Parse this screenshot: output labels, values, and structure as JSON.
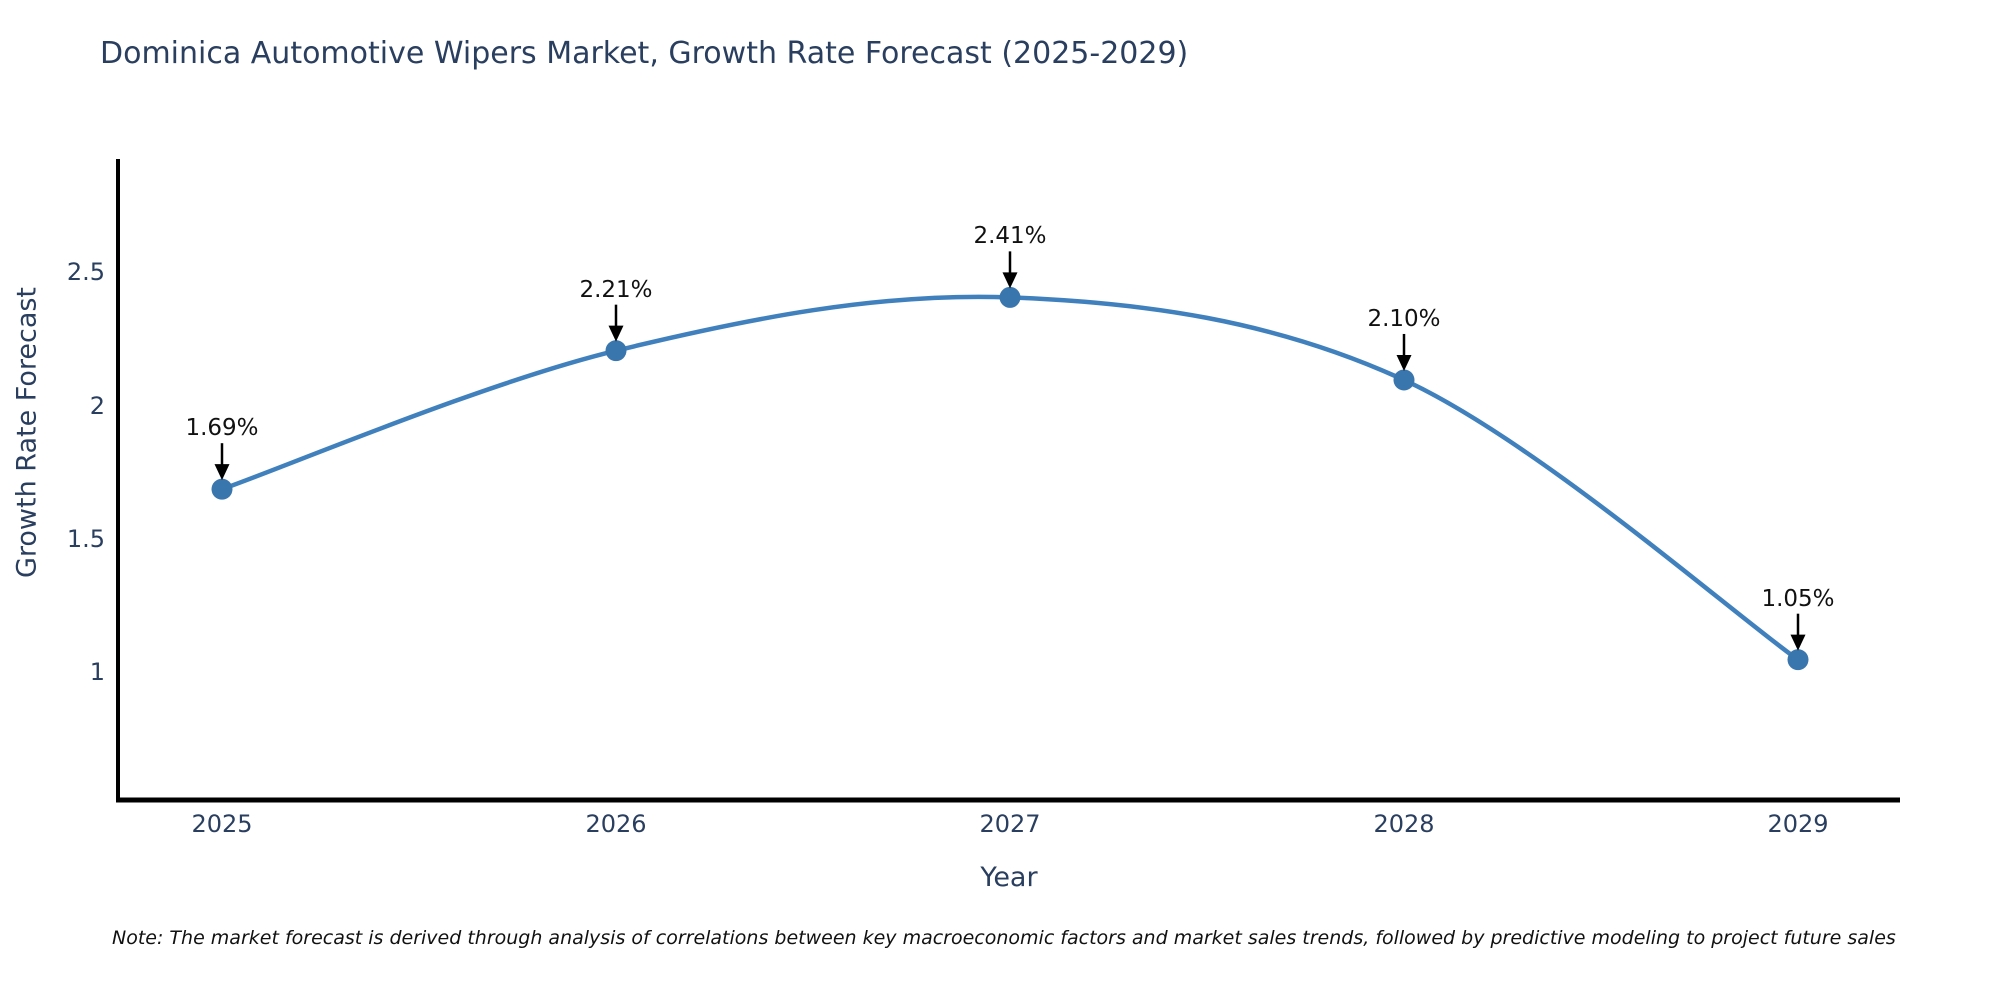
{
  "note": {
    "text": "Note: The market forecast is derived through analysis of correlations between key macroeconomic factors and market sales trends, followed by predictive modeling to project future sales"
  },
  "colors": {
    "line": "#4081bd",
    "marker": "#3a76ae",
    "spine": "#000000",
    "arrow": "#000000",
    "axis_text": "#2a3f5f",
    "annotation_text": "#111111"
  },
  "chart_data": {
    "type": "line",
    "title": "Dominica Automotive Wipers Market, Growth Rate Forecast (2025-2029)",
    "xlabel": "Year",
    "ylabel": "Growth Rate Forecast",
    "categories": [
      "2025",
      "2026",
      "2027",
      "2028",
      "2029"
    ],
    "values": [
      1.69,
      2.21,
      2.41,
      2.1,
      1.05
    ],
    "point_labels": [
      "1.69%",
      "2.21%",
      "2.41%",
      "2.10%",
      "1.05%"
    ],
    "yticks": [
      1,
      1.5,
      2,
      2.5
    ],
    "ytick_labels": [
      "1",
      "1.5",
      "2",
      "2.5"
    ],
    "ylim": [
      0.52,
      2.93
    ],
    "line_shape": "spline",
    "grid": false,
    "legend_position": "none",
    "annotations": "value labels with down arrows above each point"
  }
}
